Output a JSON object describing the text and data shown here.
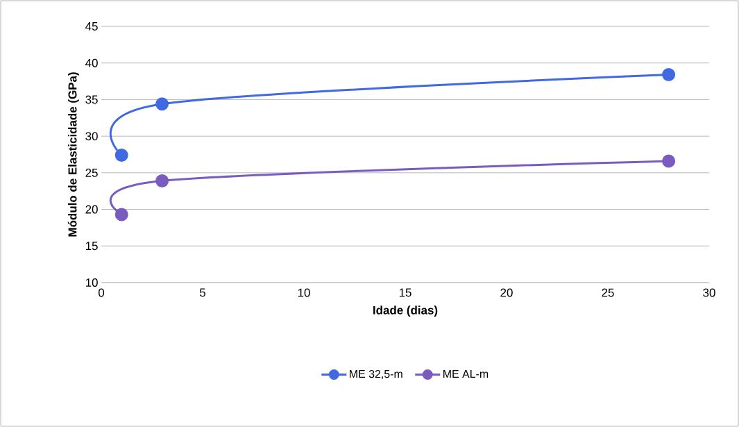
{
  "chart_data": {
    "type": "line",
    "xlabel": "Idade (dias)",
    "ylabel": "Módulo de Elasticidade (GPa)",
    "x": [
      1,
      3,
      28
    ],
    "series": [
      {
        "name": "ME 32,5-m",
        "color": "#4169e1",
        "values": [
          27.4,
          34.4,
          38.4
        ]
      },
      {
        "name": "ME AL-m",
        "color": "#7a5cc0",
        "values": [
          19.3,
          23.9,
          26.6
        ]
      }
    ],
    "xlim": [
      0,
      30
    ],
    "xticks": [
      0,
      5,
      10,
      15,
      20,
      25,
      30
    ],
    "ylim": [
      10,
      45
    ],
    "yticks": [
      10,
      15,
      20,
      25,
      30,
      35,
      40,
      45
    ],
    "grid": "y",
    "legend": "bottom",
    "marker": "circle",
    "line_style": "solid"
  }
}
